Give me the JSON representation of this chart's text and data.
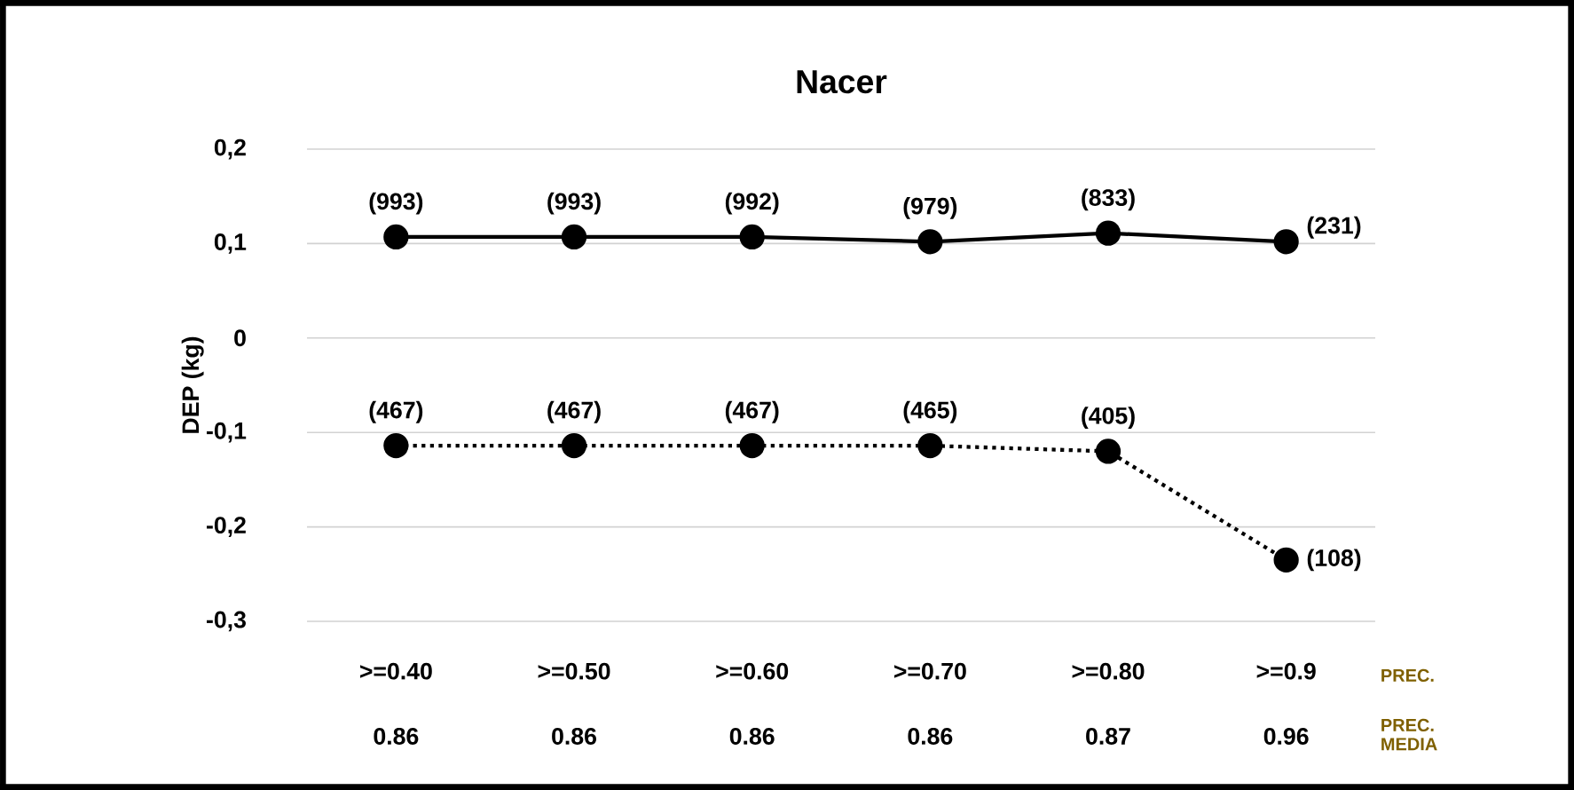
{
  "chart_data": {
    "type": "line",
    "title": "Nacer",
    "ylabel": "DEP (kg)",
    "categories": [
      ">=0.40",
      ">=0.50",
      ">=0.60",
      ">=0.70",
      ">=0.80",
      ">=0.9"
    ],
    "series": [
      {
        "color": "#000000",
        "line_style": "solid",
        "values": [
          0.107,
          0.107,
          0.107,
          0.102,
          0.111,
          0.102
        ]
      },
      {
        "color": "#000000",
        "line_style": "dotted",
        "values": [
          -0.114,
          -0.114,
          -0.114,
          -0.114,
          -0.12,
          -0.235
        ]
      }
    ],
    "annotations": [
      {
        "text": "(993)",
        "x": ">=0.40",
        "y": 0.107
      },
      {
        "text": "(993)",
        "x": ">=0.50",
        "y": 0.107
      },
      {
        "text": "(992)",
        "x": ">=0.60",
        "y": 0.107
      },
      {
        "text": "(979)",
        "x": ">=0.70",
        "y": 0.102
      },
      {
        "text": "(833)",
        "x": ">=0.80",
        "y": 0.111
      },
      {
        "text": "(231)",
        "x": ">=0.9",
        "y": 0.102
      },
      {
        "text": "(467)",
        "x": ">=0.40",
        "y": -0.114
      },
      {
        "text": "(467)",
        "x": ">=0.50",
        "y": -0.114
      },
      {
        "text": "(467)",
        "x": ">=0.60",
        "y": -0.114
      },
      {
        "text": "(465)",
        "x": ">=0.70",
        "y": -0.114
      },
      {
        "text": "(405)",
        "x": ">=0.80",
        "y": -0.12
      },
      {
        "text": "(108)",
        "x": ">=0.9",
        "y": -0.235
      },
      "PREC.",
      "0.86",
      "0.86",
      "0.86",
      "0.86",
      "0.87",
      "0.96",
      "PREC. MEDIA"
    ],
    "ylim": [
      -0.3,
      0.2
    ],
    "yticks": [
      {
        "value": 0.2,
        "label": "0,2"
      },
      {
        "value": 0.1,
        "label": "0,1"
      },
      0,
      {
        "value": -0.1,
        "label": "-0,1"
      },
      {
        "value": -0.2,
        "label": "-0,2"
      },
      {
        "value": -0.3,
        "label": "-0,3"
      }
    ],
    "grid": "y",
    "marker": "circle",
    "legend": false
  }
}
